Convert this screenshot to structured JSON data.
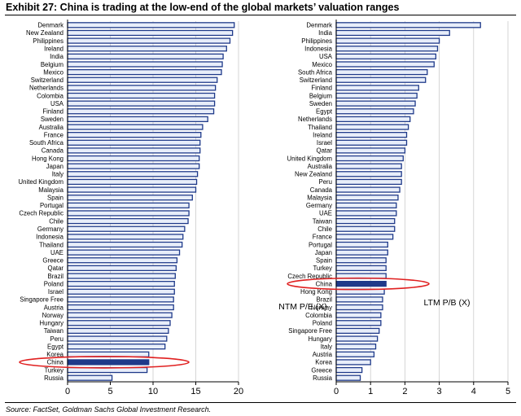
{
  "page": {
    "title": "Exhibit 27: China is trading at the low-end of the global markets’ valuation ranges",
    "source": "Source: FactSet, Goldman Sachs Global Investment Research."
  },
  "colors": {
    "bar_fill": "#e8eefa",
    "bar_stroke": "#1f3a8a",
    "highlight_fill": "#1f3a8a",
    "circle": "#e02020",
    "grid": "#cccccc"
  },
  "chart_data": [
    {
      "type": "bar",
      "orientation": "horizontal",
      "series_label": "NTM P/E (X)",
      "highlight": "China",
      "xlim": [
        0,
        20
      ],
      "xticks": [
        0,
        5,
        10,
        15,
        20
      ],
      "grid": true,
      "categories": [
        "Denmark",
        "New Zealand",
        "Philippines",
        "Ireland",
        "India",
        "Belgium",
        "Mexico",
        "Switzerland",
        "Netherlands",
        "Colombia",
        "USA",
        "Finland",
        "Sweden",
        "Australia",
        "France",
        "South Africa",
        "Canada",
        "Hong Kong",
        "Japan",
        "Italy",
        "United Kingdom",
        "Malaysia",
        "Spain",
        "Portugal",
        "Czech Republic",
        "Chile",
        "Germany",
        "Indonesia",
        "Thailand",
        "UAE",
        "Greece",
        "Qatar",
        "Brazil",
        "Poland",
        "Israel",
        "Singapore Free",
        "Austria",
        "Norway",
        "Hungary",
        "Taiwan",
        "Peru",
        "Egypt",
        "Korea",
        "China",
        "Turkey",
        "Russia"
      ],
      "values": [
        19.5,
        19.3,
        19.0,
        18.6,
        18.2,
        18.1,
        18.0,
        17.5,
        17.3,
        17.2,
        17.2,
        17.1,
        16.4,
        15.8,
        15.6,
        15.5,
        15.5,
        15.4,
        15.4,
        15.2,
        15.1,
        15.0,
        14.6,
        14.2,
        14.2,
        14.1,
        13.7,
        13.5,
        13.4,
        13.1,
        12.8,
        12.7,
        12.6,
        12.5,
        12.5,
        12.4,
        12.4,
        12.2,
        12.0,
        11.8,
        11.6,
        11.4,
        9.5,
        9.5,
        9.3,
        5.2
      ]
    },
    {
      "type": "bar",
      "orientation": "horizontal",
      "series_label": "LTM P/B (X)",
      "highlight": "China",
      "xlim": [
        0,
        5
      ],
      "xticks": [
        0,
        1,
        2,
        3,
        4,
        5
      ],
      "grid": true,
      "categories": [
        "Denmark",
        "India",
        "Philippines",
        "Indonesia",
        "USA",
        "Mexico",
        "South Africa",
        "Switzerland",
        "Finland",
        "Belgium",
        "Sweden",
        "Egypt",
        "Netherlands",
        "Thailand",
        "Ireland",
        "Israel",
        "Qatar",
        "United Kingdom",
        "Australia",
        "New Zealand",
        "Peru",
        "Canada",
        "Malaysia",
        "Germany",
        "UAE",
        "Taiwan",
        "Chile",
        "France",
        "Portugal",
        "Japan",
        "Spain",
        "Turkey",
        "Czech Republic",
        "China",
        "Hong Kong",
        "Brazil",
        "Norway",
        "Colombia",
        "Poland",
        "Singapore Free",
        "Hungary",
        "Italy",
        "Austria",
        "Korea",
        "Greece",
        "Russia"
      ],
      "values": [
        4.2,
        3.3,
        3.0,
        2.95,
        2.9,
        2.85,
        2.65,
        2.6,
        2.4,
        2.35,
        2.3,
        2.25,
        2.15,
        2.1,
        2.05,
        2.05,
        2.0,
        1.95,
        1.9,
        1.9,
        1.9,
        1.85,
        1.8,
        1.75,
        1.75,
        1.7,
        1.7,
        1.65,
        1.5,
        1.5,
        1.45,
        1.45,
        1.45,
        1.45,
        1.4,
        1.35,
        1.35,
        1.3,
        1.3,
        1.25,
        1.2,
        1.15,
        1.1,
        1.0,
        0.75,
        0.7
      ]
    }
  ]
}
